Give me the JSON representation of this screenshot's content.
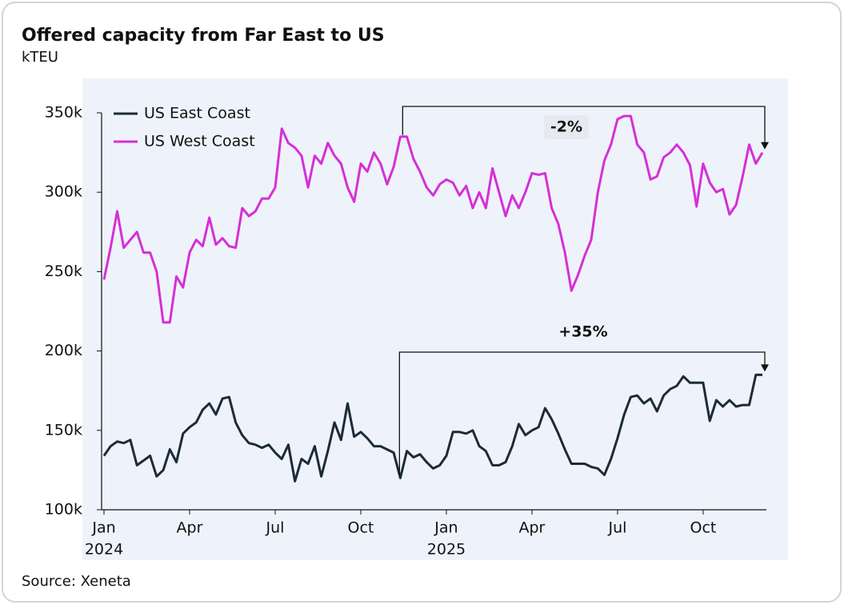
{
  "chart_data": {
    "type": "line",
    "title": "Offered capacity from Far East to US",
    "subtitle": "kTEU",
    "source": "Source: Xeneta",
    "categories": [
      "Jan",
      null,
      null,
      null,
      null,
      null,
      null,
      null,
      null,
      null,
      null,
      null,
      null,
      "Apr",
      null,
      null,
      null,
      null,
      null,
      null,
      null,
      null,
      null,
      null,
      null,
      null,
      "Jul",
      null,
      null,
      null,
      null,
      null,
      null,
      null,
      null,
      null,
      null,
      null,
      null,
      "Oct",
      null,
      null,
      null,
      null,
      null,
      null,
      null,
      null,
      null,
      null,
      null,
      null,
      "Jan",
      null,
      null,
      null,
      null,
      null,
      null,
      null,
      null,
      null,
      null,
      null,
      null,
      "Apr",
      null,
      null,
      null,
      null,
      null,
      null,
      null,
      null,
      null,
      null,
      null,
      null,
      "Jul",
      null,
      null,
      null,
      null,
      null,
      null,
      null,
      null,
      null,
      null,
      null,
      null,
      "Oct",
      null,
      null,
      null,
      null,
      null,
      null,
      null,
      null,
      null
    ],
    "year_ticks": [
      {
        "value": 0,
        "label": "2024"
      },
      {
        "value": 52,
        "label": "2025"
      }
    ],
    "series": [
      {
        "name": "US East Coast",
        "color": "#1c2b3a",
        "values": [
          134,
          140,
          143,
          142,
          144,
          128,
          131,
          134,
          121,
          125,
          138,
          130,
          148,
          152,
          155,
          163,
          167,
          160,
          170,
          171,
          155,
          147,
          142,
          141,
          139,
          141,
          136,
          132,
          141,
          118,
          132,
          129,
          140,
          121,
          137,
          155,
          144,
          167,
          146,
          149,
          145,
          140,
          140,
          138,
          136,
          120,
          137,
          133,
          135,
          130,
          126,
          128,
          134,
          149,
          149,
          148,
          150,
          140,
          137,
          128,
          128,
          130,
          140,
          154,
          147,
          150,
          152,
          164,
          157,
          148,
          138,
          129,
          129,
          129,
          127,
          126,
          122,
          132,
          145,
          160,
          171,
          172,
          167,
          170,
          162,
          172,
          176,
          178,
          184,
          180,
          180,
          180,
          156,
          169,
          165,
          169,
          165,
          166,
          166,
          185,
          185
        ]
      },
      {
        "name": "US West Coast",
        "color": "#d62fd6",
        "values": [
          245,
          265,
          288,
          265,
          270,
          275,
          262,
          262,
          250,
          218,
          218,
          247,
          240,
          262,
          270,
          266,
          284,
          267,
          271,
          266,
          265,
          290,
          285,
          288,
          296,
          296,
          303,
          340,
          331,
          328,
          323,
          303,
          323,
          318,
          331,
          323,
          318,
          303,
          294,
          318,
          313,
          325,
          318,
          305,
          316,
          335,
          335,
          321,
          313,
          303,
          298,
          305,
          308,
          306,
          298,
          304,
          290,
          300,
          290,
          315,
          300,
          285,
          298,
          290,
          300,
          312,
          311,
          312,
          290,
          280,
          262,
          238,
          248,
          260,
          270,
          300,
          320,
          330,
          346,
          348,
          348,
          330,
          325,
          308,
          310,
          322,
          325,
          330,
          325,
          317,
          291,
          318,
          306,
          300,
          302,
          286,
          292,
          310,
          330,
          318,
          325
        ]
      }
    ],
    "annotations": [
      "-2%",
      "+35%"
    ],
    "ylim": [
      100,
      350
    ],
    "yticks": [
      {
        "value": 100,
        "label": "100k"
      },
      {
        "value": 150,
        "label": "150k"
      },
      {
        "value": 200,
        "label": "200k"
      },
      {
        "value": 250,
        "label": "250k"
      },
      {
        "value": 300,
        "label": "300k"
      },
      {
        "value": 350,
        "label": "350k"
      }
    ],
    "grid": false,
    "legend": "top-left"
  }
}
